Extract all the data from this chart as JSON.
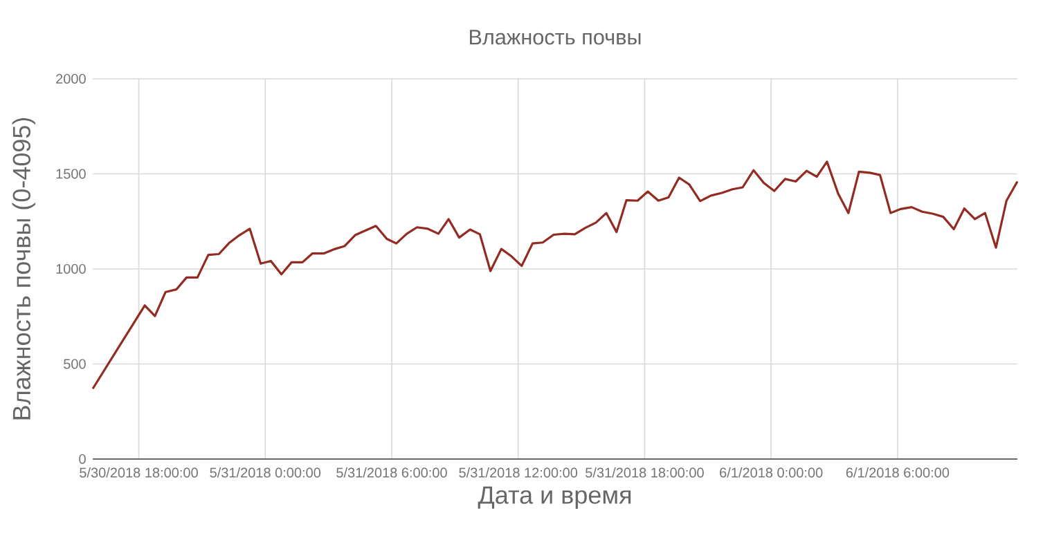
{
  "chart_data": {
    "type": "line",
    "title": "Влажность почвы",
    "xlabel": "Дата и время",
    "ylabel": "Влажность почвы (0-4095)",
    "x": [
      "2018-05-30T15:49",
      "2018-05-30T18:17",
      "2018-05-30T18:46",
      "2018-05-30T19:16",
      "2018-05-30T19:47",
      "2018-05-30T20:16",
      "2018-05-30T20:47",
      "2018-05-30T21:18",
      "2018-05-30T21:48",
      "2018-05-30T22:17",
      "2018-05-30T22:47",
      "2018-05-30T23:16",
      "2018-05-30T23:47",
      "2018-05-31T00:16",
      "2018-05-31T00:46",
      "2018-05-31T01:15",
      "2018-05-31T01:46",
      "2018-05-31T02:14",
      "2018-05-31T02:46",
      "2018-05-31T03:15",
      "2018-05-31T03:46",
      "2018-05-31T04:16",
      "2018-05-31T04:45",
      "2018-05-31T05:15",
      "2018-05-31T05:46",
      "2018-05-31T06:13",
      "2018-05-31T06:43",
      "2018-05-31T07:12",
      "2018-05-31T07:43",
      "2018-05-31T08:13",
      "2018-05-31T08:42",
      "2018-05-31T09:12",
      "2018-05-31T09:43",
      "2018-05-31T10:11",
      "2018-05-31T10:41",
      "2018-05-31T11:12",
      "2018-05-31T11:41",
      "2018-05-31T12:10",
      "2018-05-31T12:41",
      "2018-05-31T13:10",
      "2018-05-31T13:41",
      "2018-05-31T14:12",
      "2018-05-31T14:41",
      "2018-05-31T15:11",
      "2018-05-31T15:41",
      "2018-05-31T16:11",
      "2018-05-31T16:40",
      "2018-05-31T17:08",
      "2018-05-31T17:40",
      "2018-05-31T18:09",
      "2018-05-31T18:39",
      "2018-05-31T19:08",
      "2018-05-31T19:38",
      "2018-05-31T20:07",
      "2018-05-31T20:38",
      "2018-05-31T21:09",
      "2018-05-31T21:40",
      "2018-05-31T22:10",
      "2018-05-31T22:39",
      "2018-05-31T23:10",
      "2018-05-31T23:39",
      "2018-06-01T00:09",
      "2018-06-01T00:40",
      "2018-06-01T01:10",
      "2018-06-01T01:41",
      "2018-06-01T02:10",
      "2018-06-01T02:39",
      "2018-06-01T03:11",
      "2018-06-01T03:40",
      "2018-06-01T04:10",
      "2018-06-01T04:41",
      "2018-06-01T05:10",
      "2018-06-01T05:40",
      "2018-06-01T06:09",
      "2018-06-01T06:40",
      "2018-06-01T07:10",
      "2018-06-01T07:39",
      "2018-06-01T08:10",
      "2018-06-01T08:40",
      "2018-06-01T09:10",
      "2018-06-01T09:40",
      "2018-06-01T10:09",
      "2018-06-01T10:40",
      "2018-06-01T11:10",
      "2018-06-01T11:41"
    ],
    "series": [
      {
        "color": "#922b21",
        "values": [
          370,
          808,
          752,
          878,
          892,
          955,
          955,
          1074,
          1078,
          1136,
          1178,
          1211,
          1028,
          1042,
          972,
          1035,
          1035,
          1081,
          1081,
          1103,
          1120,
          1178,
          1202,
          1226,
          1158,
          1134,
          1185,
          1219,
          1211,
          1185,
          1262,
          1165,
          1207,
          1182,
          989,
          1105,
          1066,
          1016,
          1134,
          1139,
          1180,
          1185,
          1182,
          1216,
          1243,
          1294,
          1194,
          1361,
          1359,
          1407,
          1359,
          1376,
          1480,
          1444,
          1357,
          1386,
          1400,
          1419,
          1429,
          1519,
          1453,
          1410,
          1473,
          1460,
          1516,
          1485,
          1564,
          1395,
          1294,
          1511,
          1506,
          1494,
          1294,
          1315,
          1325,
          1301,
          1291,
          1274,
          1209,
          1318,
          1262,
          1294,
          1112,
          1359,
          1460
        ]
      }
    ],
    "xlim": [
      "2018-05-30T15:49",
      "2018-06-01T11:41"
    ],
    "xticks": [
      {
        "value": "2018-05-30T18:00",
        "label": "5/30/2018 18:00:00"
      },
      {
        "value": "2018-05-31T00:00",
        "label": "5/31/2018 0:00:00"
      },
      {
        "value": "2018-05-31T06:00",
        "label": "5/31/2018 6:00:00"
      },
      {
        "value": "2018-05-31T12:00",
        "label": "5/31/2018 12:00:00"
      },
      {
        "value": "2018-05-31T18:00",
        "label": "5/31/2018 18:00:00"
      },
      {
        "value": "2018-06-01T00:00",
        "label": "6/1/2018 0:00:00"
      },
      {
        "value": "2018-06-01T06:00",
        "label": "6/1/2018 6:00:00"
      }
    ],
    "ylim": [
      0,
      2000
    ],
    "yticks": [
      0,
      500,
      1000,
      1500,
      2000
    ],
    "grid": true,
    "legend": false,
    "marker": "none",
    "line_style": "solid"
  }
}
